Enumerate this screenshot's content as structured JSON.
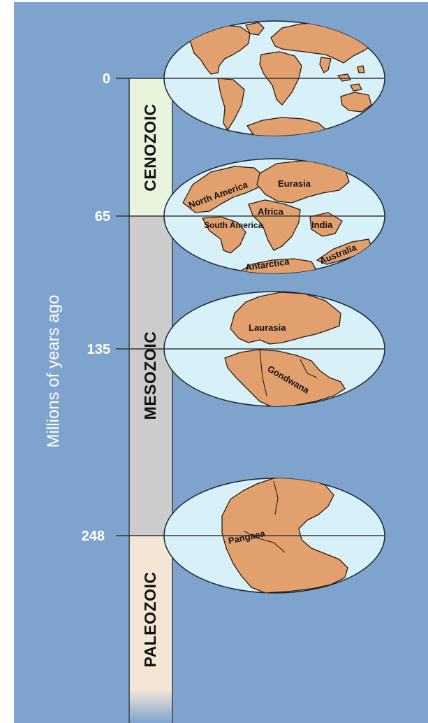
{
  "axis_label": "Millions of years ago",
  "ticks": [
    {
      "value": "0"
    },
    {
      "value": "65"
    },
    {
      "value": "135"
    },
    {
      "value": "248"
    }
  ],
  "eras": [
    {
      "name": "CENOZOIC",
      "color": "#e8f5dc"
    },
    {
      "name": "MESOZOIC",
      "color": "#cccccc"
    },
    {
      "name": "PALEOZOIC",
      "color": "#f4e6d5"
    }
  ],
  "globes": [
    {
      "labels": []
    },
    {
      "labels": [
        "North America",
        "Eurasia",
        "Africa",
        "South America",
        "India",
        "Australia",
        "Antarctica"
      ]
    },
    {
      "labels": [
        "Laurasia",
        "Gondwana"
      ]
    },
    {
      "labels": [
        "Pangaea"
      ]
    }
  ],
  "colors": {
    "background": "#7ea4ce",
    "ocean": "#d8f0f8",
    "land": "#e3a06f"
  }
}
